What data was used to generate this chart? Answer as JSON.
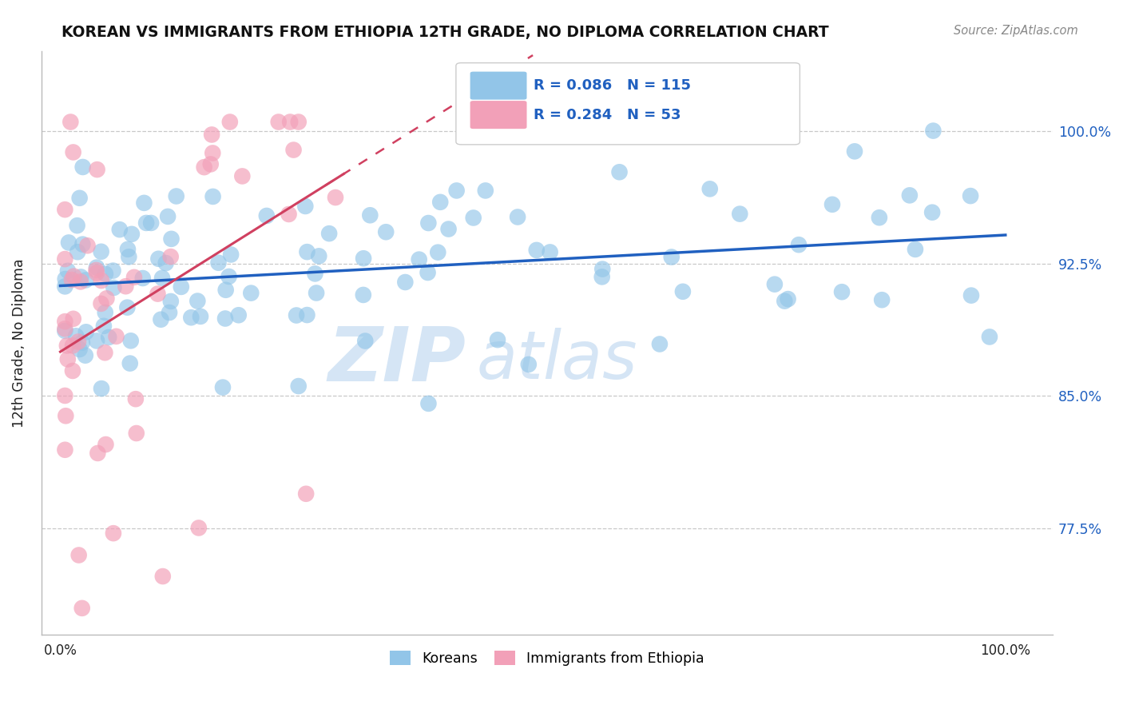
{
  "title": "KOREAN VS IMMIGRANTS FROM ETHIOPIA 12TH GRADE, NO DIPLOMA CORRELATION CHART",
  "source": "Source: ZipAtlas.com",
  "ylabel": "12th Grade, No Diploma",
  "ytick_labels": [
    "77.5%",
    "85.0%",
    "92.5%",
    "100.0%"
  ],
  "ytick_vals": [
    0.775,
    0.85,
    0.925,
    1.0
  ],
  "legend_labels": [
    "Koreans",
    "Immigrants from Ethiopia"
  ],
  "blue_R": "R = 0.086",
  "blue_N": "N = 115",
  "pink_R": "R = 0.284",
  "pink_N": "N = 53",
  "blue_color": "#92C5E8",
  "pink_color": "#F2A0B8",
  "blue_line_color": "#2060C0",
  "pink_line_color": "#D04060",
  "watermark_color": "#D5E5F5",
  "grid_color": "#C8C8C8",
  "xlim": [
    -0.02,
    1.05
  ],
  "ylim": [
    0.715,
    1.045
  ]
}
